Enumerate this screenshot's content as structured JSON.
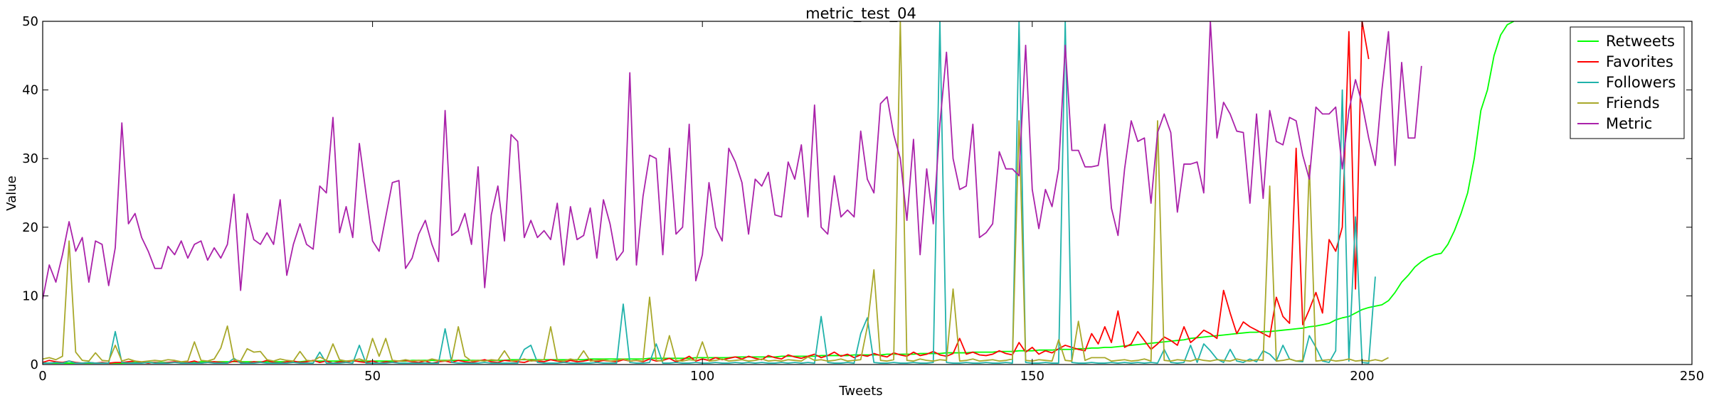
{
  "chart_data": {
    "type": "line",
    "title": "metric_test_04",
    "xlabel": "Tweets",
    "ylabel": "Value",
    "xlim": [
      0,
      250
    ],
    "ylim": [
      0,
      50
    ],
    "xticks": [
      0,
      50,
      100,
      150,
      200,
      250
    ],
    "yticks": [
      0,
      10,
      20,
      30,
      40,
      50
    ],
    "grid": false,
    "legend_position": "top-right",
    "series": [
      {
        "name": "Retweets",
        "color": "#00ff00",
        "values": [
          0.2,
          0.2,
          0.2,
          0.2,
          0.2,
          0.2,
          0.2,
          0.2,
          0.2,
          0.2,
          0.2,
          0.2,
          0.2,
          0.2,
          0.3,
          0.3,
          0.3,
          0.3,
          0.3,
          0.3,
          0.3,
          0.3,
          0.3,
          0.3,
          0.4,
          0.4,
          0.4,
          0.4,
          0.4,
          0.4,
          0.4,
          0.4,
          0.4,
          0.4,
          0.4,
          0.4,
          0.4,
          0.4,
          0.4,
          0.4,
          0.5,
          0.5,
          0.5,
          0.5,
          0.5,
          0.5,
          0.5,
          0.5,
          0.5,
          0.5,
          0.5,
          0.5,
          0.5,
          0.5,
          0.5,
          0.5,
          0.6,
          0.6,
          0.6,
          0.6,
          0.6,
          0.6,
          0.6,
          0.6,
          0.6,
          0.6,
          0.6,
          0.6,
          0.6,
          0.6,
          0.6,
          0.7,
          0.7,
          0.7,
          0.7,
          0.7,
          0.7,
          0.7,
          0.7,
          0.7,
          0.7,
          0.7,
          0.7,
          0.8,
          0.8,
          0.8,
          0.8,
          0.8,
          0.8,
          0.8,
          0.8,
          0.8,
          0.9,
          0.9,
          0.9,
          0.9,
          0.9,
          0.9,
          0.9,
          1.0,
          1.0,
          1.0,
          1.0,
          1.0,
          1.0,
          1.1,
          1.1,
          1.1,
          1.1,
          1.1,
          1.1,
          1.1,
          1.2,
          1.2,
          1.2,
          1.2,
          1.2,
          1.2,
          1.3,
          1.3,
          1.3,
          1.3,
          1.3,
          1.4,
          1.4,
          1.4,
          1.4,
          1.4,
          1.5,
          1.5,
          1.5,
          1.5,
          1.5,
          1.6,
          1.6,
          1.6,
          1.6,
          1.7,
          1.7,
          1.7,
          1.7,
          1.8,
          1.8,
          1.8,
          1.8,
          1.9,
          1.9,
          1.9,
          2.0,
          2.0,
          2.0,
          2.1,
          2.1,
          2.1,
          2.2,
          2.2,
          2.2,
          2.3,
          2.3,
          2.4,
          2.4,
          2.5,
          2.5,
          2.6,
          2.7,
          2.8,
          2.9,
          3.0,
          3.1,
          3.2,
          3.3,
          3.4,
          3.5,
          3.6,
          3.8,
          3.9,
          4.0,
          4.1,
          4.2,
          4.3,
          4.4,
          4.5,
          4.6,
          4.7,
          4.7,
          4.8,
          4.8,
          4.9,
          5.0,
          5.1,
          5.2,
          5.3,
          5.5,
          5.6,
          5.8,
          6.0,
          6.5,
          6.8,
          7.0,
          7.5,
          8.0,
          8.3,
          8.5,
          8.7,
          9.3,
          10.5,
          12.0,
          13.0,
          14.2,
          15.0,
          15.6,
          16.0,
          16.2,
          17.5,
          19.5,
          22.0,
          25.0,
          30.0,
          37.0,
          40.0,
          45.0,
          48.0,
          49.5,
          50.0
        ]
      },
      {
        "name": "Favorites",
        "color": "#ff0000",
        "values": [
          0.3,
          0.6,
          0.4,
          0.3,
          0.5,
          0.3,
          0.2,
          0.3,
          0.2,
          0.3,
          0.2,
          0.3,
          0.3,
          0.4,
          0.5,
          0.3,
          0.2,
          0.3,
          0.2,
          0.3,
          0.4,
          0.2,
          0.3,
          0.5,
          0.2,
          0.3,
          0.4,
          0.3,
          0.2,
          0.5,
          0.3,
          0.2,
          0.4,
          0.3,
          0.6,
          0.3,
          0.2,
          0.4,
          0.5,
          0.3,
          0.4,
          0.6,
          0.3,
          0.5,
          0.2,
          0.4,
          0.3,
          0.6,
          0.4,
          0.3,
          0.5,
          0.2,
          0.4,
          0.3,
          0.5,
          0.6,
          0.4,
          0.3,
          0.5,
          0.2,
          0.4,
          0.5,
          0.3,
          0.6,
          0.4,
          0.3,
          0.5,
          0.7,
          0.4,
          0.3,
          0.6,
          0.5,
          0.4,
          0.3,
          0.6,
          0.5,
          0.4,
          0.7,
          0.5,
          0.3,
          0.6,
          0.4,
          0.5,
          0.7,
          0.4,
          0.6,
          0.5,
          0.4,
          0.7,
          0.5,
          0.6,
          0.4,
          0.8,
          0.5,
          0.6,
          0.9,
          0.4,
          0.7,
          1.2,
          0.5,
          0.8,
          0.6,
          1.0,
          0.7,
          0.9,
          1.1,
          0.8,
          1.2,
          0.9,
          0.7,
          1.3,
          1.0,
          0.8,
          1.4,
          1.1,
          0.9,
          1.2,
          1.5,
          1.0,
          1.3,
          1.8,
          1.2,
          1.5,
          1.0,
          1.4,
          1.2,
          1.6,
          1.3,
          1.1,
          1.7,
          1.4,
          1.2,
          1.8,
          1.3,
          1.5,
          1.9,
          1.4,
          1.2,
          1.6,
          3.8,
          1.5,
          1.8,
          1.4,
          1.3,
          1.5,
          2.0,
          1.6,
          1.4,
          3.2,
          1.8,
          2.5,
          1.5,
          2.0,
          1.7,
          2.3,
          2.8,
          2.5,
          2.2,
          2.0,
          4.5,
          3.0,
          5.5,
          3.2,
          7.8,
          2.5,
          3.0,
          4.8,
          3.5,
          2.2,
          3.0,
          4.0,
          3.5,
          2.8,
          5.5,
          3.2,
          4.0,
          5.0,
          4.5,
          3.8,
          10.8,
          7.5,
          4.5,
          6.2,
          5.5,
          5.0,
          4.5,
          4.0,
          9.8,
          7.0,
          6.0,
          31.5,
          5.8,
          8.0,
          10.5,
          7.5,
          18.2,
          16.5,
          20.0,
          48.5,
          11.0,
          50.0,
          44.5
        ]
      },
      {
        "name": "Followers",
        "color": "#20b2aa",
        "values": [
          0.2,
          0.2,
          0.3,
          0.2,
          0.5,
          0.2,
          0.2,
          0.3,
          0.2,
          0.2,
          0.2,
          4.8,
          0.3,
          0.2,
          0.2,
          0.2,
          0.3,
          0.2,
          0.2,
          0.2,
          0.3,
          0.2,
          0.2,
          0.2,
          0.2,
          0.3,
          0.2,
          0.2,
          0.2,
          0.9,
          0.2,
          0.2,
          0.2,
          0.3,
          0.2,
          0.2,
          0.2,
          0.2,
          0.3,
          0.2,
          0.2,
          0.2,
          1.8,
          0.2,
          0.2,
          0.2,
          0.3,
          0.2,
          2.8,
          0.2,
          0.2,
          0.2,
          0.2,
          0.3,
          0.2,
          0.2,
          0.2,
          0.2,
          0.2,
          0.2,
          0.2,
          5.2,
          0.3,
          0.2,
          0.2,
          0.2,
          0.2,
          0.3,
          0.2,
          0.2,
          0.2,
          0.2,
          0.2,
          2.2,
          2.8,
          0.3,
          0.2,
          0.2,
          0.2,
          0.3,
          0.2,
          0.2,
          0.2,
          0.2,
          0.3,
          0.2,
          0.2,
          0.2,
          8.8,
          0.3,
          0.2,
          0.2,
          0.3,
          3.0,
          0.2,
          0.2,
          0.3,
          0.2,
          0.2,
          0.3,
          0.2,
          0.2,
          0.3,
          0.2,
          0.2,
          0.3,
          0.2,
          0.3,
          0.2,
          0.3,
          0.2,
          0.2,
          0.3,
          0.2,
          0.3,
          0.2,
          0.3,
          0.2,
          7.0,
          0.3,
          0.2,
          0.2,
          0.3,
          0.2,
          4.5,
          6.8,
          0.3,
          0.2,
          0.2,
          0.3,
          0.2,
          0.2,
          0.3,
          0.2,
          0.2,
          0.3,
          50.0,
          0.3,
          0.2,
          0.2,
          0.3,
          0.2,
          0.2,
          0.3,
          0.2,
          0.2,
          0.3,
          0.2,
          50.0,
          0.3,
          0.2,
          0.2,
          0.3,
          0.2,
          0.2,
          50.0,
          0.3,
          0.2,
          0.2,
          0.3,
          0.2,
          0.2,
          0.3,
          0.2,
          0.3,
          0.2,
          0.3,
          0.2,
          0.3,
          0.2,
          2.2,
          0.3,
          0.2,
          0.3,
          2.8,
          0.3,
          3.0,
          2.0,
          0.8,
          0.3,
          2.2,
          0.5,
          0.3,
          0.8,
          0.4,
          2.0,
          1.5,
          0.5,
          2.8,
          0.8,
          0.5,
          0.4,
          4.2,
          2.5,
          0.5,
          0.3,
          2.0,
          40.0,
          0.5,
          21.5,
          0.3,
          0.2,
          12.8
        ]
      },
      {
        "name": "Friends",
        "color": "#a8a82a",
        "values": [
          0.8,
          1.0,
          0.7,
          1.2,
          18.0,
          1.8,
          0.6,
          0.5,
          1.7,
          0.6,
          0.5,
          2.8,
          0.5,
          0.8,
          0.5,
          0.4,
          0.5,
          0.6,
          0.5,
          0.7,
          0.6,
          0.4,
          0.5,
          3.3,
          0.6,
          0.5,
          0.8,
          2.4,
          5.6,
          0.7,
          0.5,
          2.3,
          1.8,
          1.9,
          0.7,
          0.5,
          0.8,
          0.6,
          0.5,
          1.9,
          0.6,
          0.5,
          1.1,
          0.6,
          3.0,
          0.7,
          0.5,
          0.6,
          0.8,
          0.5,
          3.8,
          1.2,
          3.8,
          0.6,
          0.5,
          0.7,
          0.5,
          0.6,
          0.5,
          0.8,
          0.6,
          0.5,
          0.7,
          5.5,
          1.2,
          0.5,
          0.6,
          0.5,
          0.7,
          0.6,
          2.0,
          0.5,
          0.6,
          0.8,
          0.5,
          0.6,
          0.7,
          5.5,
          0.6,
          0.5,
          0.8,
          0.6,
          2.0,
          0.5,
          0.6,
          0.7,
          0.5,
          0.6,
          0.8,
          0.5,
          0.6,
          0.5,
          9.8,
          0.6,
          0.5,
          4.2,
          0.6,
          0.5,
          0.7,
          0.6,
          3.3,
          0.5,
          0.6,
          0.8,
          0.5,
          0.6,
          0.7,
          0.5,
          0.6,
          0.8,
          0.5,
          0.6,
          0.5,
          0.7,
          0.6,
          0.5,
          1.1,
          0.6,
          0.7,
          0.5,
          0.6,
          0.8,
          0.5,
          0.6,
          0.7,
          5.5,
          13.8,
          0.6,
          0.5,
          0.7,
          50.0,
          0.6,
          0.5,
          0.8,
          0.6,
          0.5,
          0.7,
          0.6,
          11.0,
          0.5,
          0.6,
          0.8,
          0.5,
          0.6,
          0.7,
          0.5,
          0.6,
          0.8,
          35.5,
          0.6,
          0.5,
          0.7,
          0.6,
          0.5,
          3.6,
          0.6,
          0.5,
          6.3,
          0.6,
          1.0,
          1.0,
          1.0,
          0.5,
          0.6,
          0.7,
          0.5,
          0.6,
          0.8,
          0.5,
          35.5,
          0.6,
          0.5,
          0.7,
          0.6,
          0.5,
          0.8,
          0.6,
          0.5,
          0.7,
          0.6,
          0.5,
          0.8,
          0.6,
          0.5,
          0.7,
          0.6,
          26.0,
          0.5,
          0.6,
          0.8,
          0.5,
          0.6,
          29.0,
          0.5,
          0.6,
          0.7,
          0.5,
          0.6,
          0.8,
          0.5,
          0.6,
          0.5,
          0.7,
          0.5,
          1.0
        ]
      },
      {
        "name": "Metric",
        "color": "#aa22aa",
        "values": [
          9.5,
          14.5,
          12.0,
          16.0,
          20.8,
          16.5,
          18.5,
          12.0,
          18.0,
          17.5,
          11.5,
          17.0,
          35.2,
          20.5,
          22.0,
          18.5,
          16.5,
          14.0,
          14.0,
          17.2,
          16.0,
          18.0,
          15.5,
          17.5,
          18.0,
          15.2,
          17.0,
          15.5,
          17.5,
          24.8,
          10.8,
          22.0,
          18.2,
          17.5,
          19.2,
          17.5,
          24.0,
          13.0,
          17.5,
          20.5,
          17.5,
          16.8,
          26.0,
          25.0,
          36.0,
          19.2,
          23.0,
          18.5,
          32.2,
          25.0,
          18.0,
          16.5,
          21.5,
          26.5,
          26.8,
          14.0,
          15.5,
          19.0,
          21.0,
          17.5,
          15.0,
          37.0,
          18.8,
          19.5,
          22.0,
          17.5,
          28.8,
          11.2,
          21.8,
          26.0,
          18.0,
          33.5,
          32.5,
          18.5,
          21.0,
          18.5,
          19.5,
          18.2,
          23.5,
          14.5,
          23.0,
          18.2,
          18.8,
          22.8,
          15.5,
          24.0,
          20.5,
          15.2,
          16.5,
          42.5,
          14.5,
          24.5,
          30.5,
          30.0,
          16.0,
          31.5,
          19.0,
          20.0,
          35.0,
          12.2,
          16.0,
          26.5,
          20.0,
          18.0,
          31.5,
          29.5,
          26.5,
          19.0,
          27.0,
          26.0,
          28.0,
          21.8,
          21.5,
          29.5,
          27.0,
          32.0,
          21.5,
          37.8,
          20.0,
          19.0,
          27.5,
          21.5,
          22.5,
          21.5,
          34.0,
          27.0,
          25.0,
          38.0,
          39.0,
          33.5,
          30.0,
          21.0,
          32.8,
          16.0,
          28.5,
          20.5,
          35.0,
          45.5,
          30.0,
          25.5,
          26.0,
          35.0,
          18.5,
          19.2,
          20.5,
          31.0,
          28.5,
          28.5,
          27.5,
          46.5,
          25.5,
          19.8,
          25.5,
          23.0,
          28.5,
          46.5,
          31.2,
          31.2,
          28.8,
          28.8,
          29.0,
          35.0,
          22.8,
          18.8,
          28.5,
          35.5,
          32.5,
          33.0,
          23.5,
          33.8,
          36.5,
          33.8,
          22.2,
          29.2,
          29.2,
          29.5,
          25.0,
          50.0,
          33.0,
          38.2,
          36.5,
          34.0,
          33.8,
          23.5,
          36.5,
          24.2,
          37.0,
          32.5,
          32.0,
          36.0,
          35.5,
          30.5,
          27.0,
          37.5,
          36.5,
          36.5,
          37.5,
          28.5,
          37.0,
          41.5,
          38.0,
          33.0,
          29.0,
          40.0,
          48.5,
          29.0,
          44.0,
          33.0,
          33.0,
          43.5
        ]
      }
    ]
  }
}
